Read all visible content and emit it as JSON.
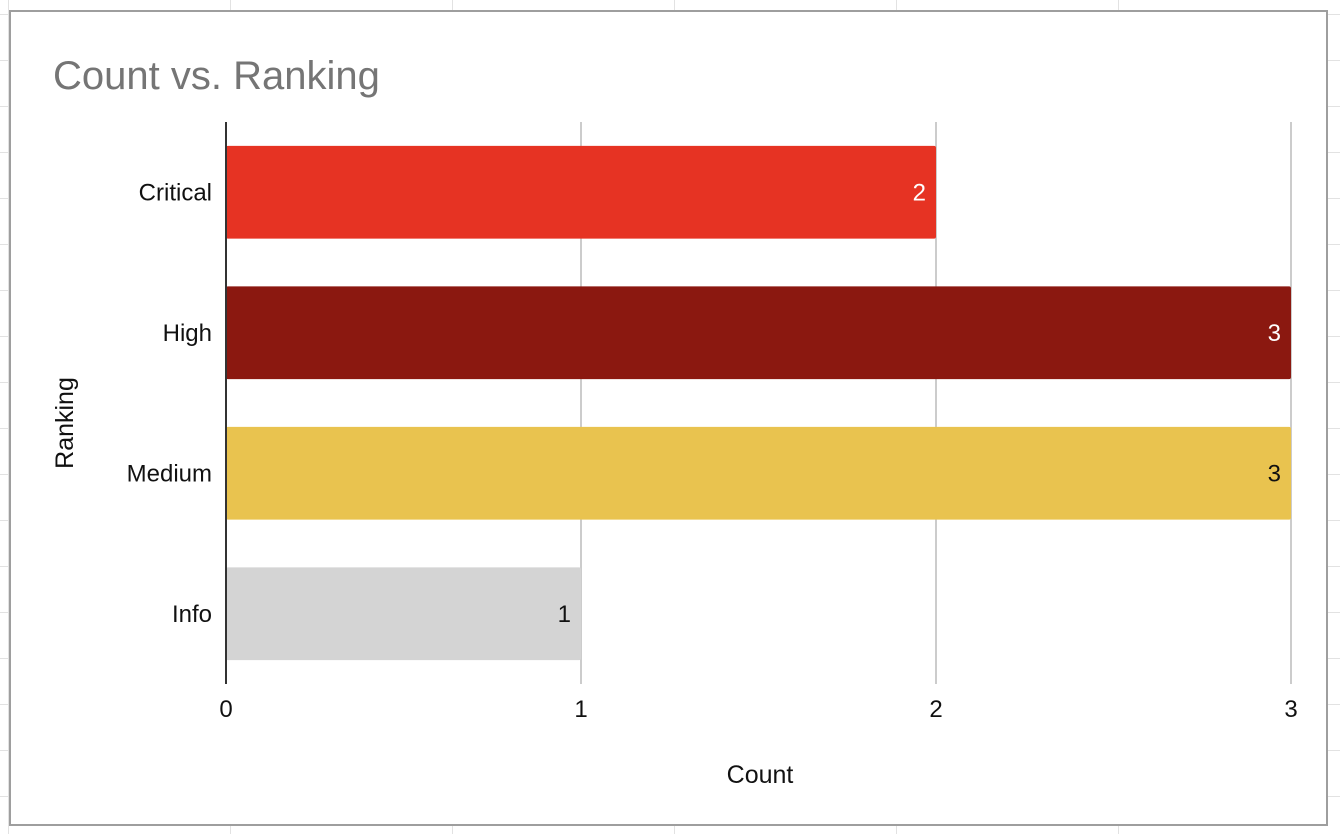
{
  "chart_data": {
    "type": "bar",
    "orientation": "horizontal",
    "title": "Count vs. Ranking",
    "xlabel": "Count",
    "ylabel": "Ranking",
    "categories": [
      "Critical",
      "High",
      "Medium",
      "Info"
    ],
    "values": [
      2,
      3,
      3,
      1
    ],
    "colors": [
      "#e63323",
      "#8b1810",
      "#e9c34f",
      "#d4d4d4"
    ],
    "data_label_colors": [
      "#ffffff",
      "#ffffff",
      "#111111",
      "#111111"
    ],
    "xlim": [
      0,
      3
    ],
    "xticks": [
      "0",
      "1",
      "2",
      "3"
    ],
    "grid": true,
    "legend": "none"
  },
  "style": {
    "title_color": "#757575",
    "grid_color": "#cccccc",
    "axis_color": "#333333"
  }
}
